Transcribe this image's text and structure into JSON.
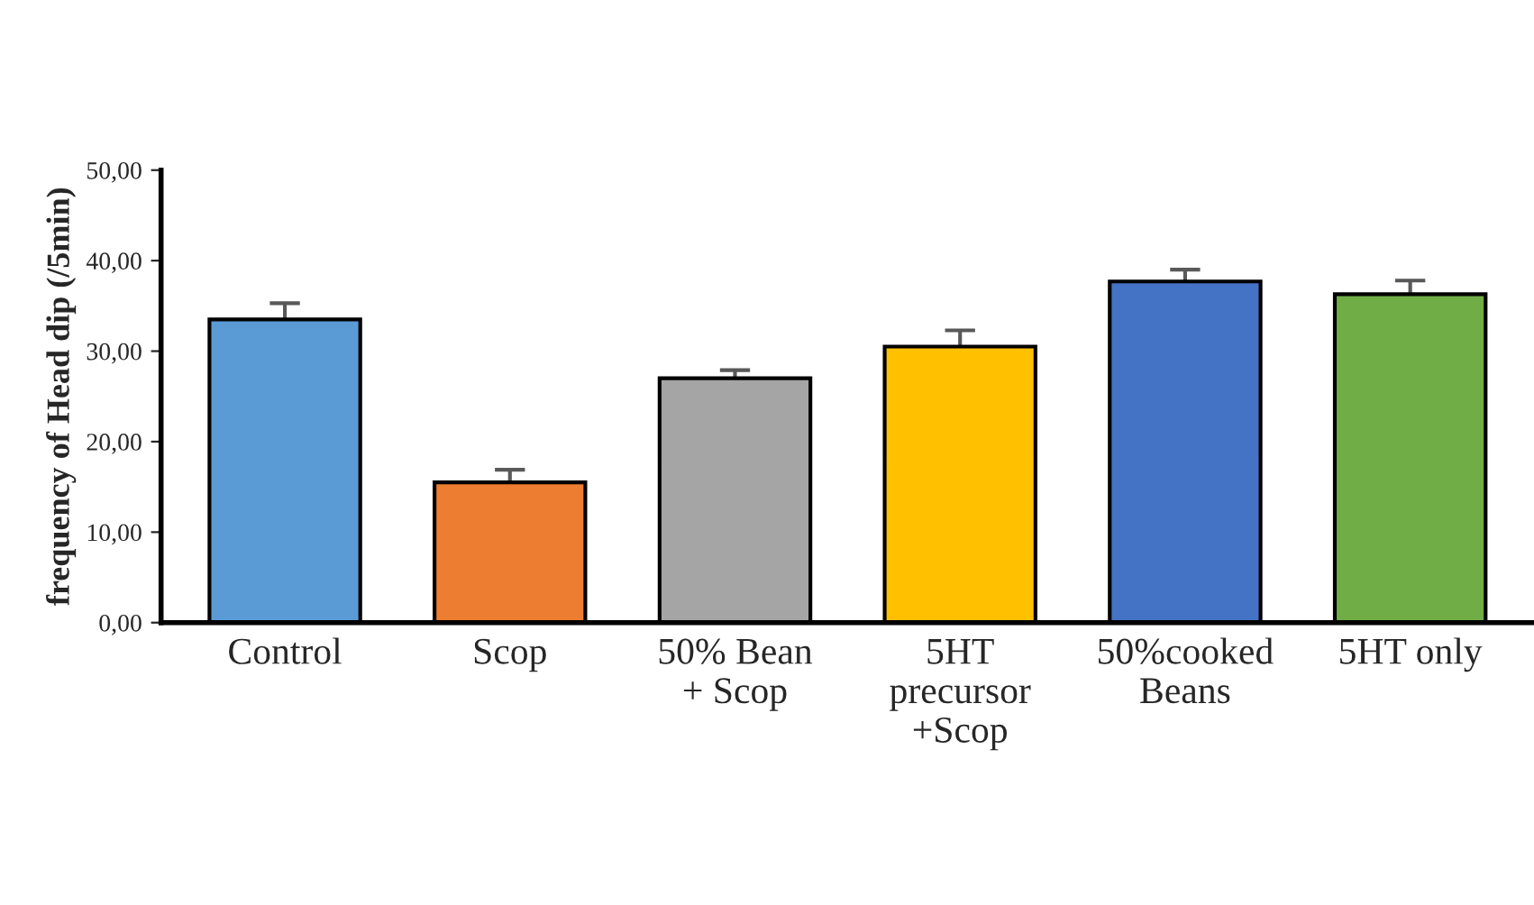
{
  "chart_data": {
    "type": "bar",
    "ylabel": "frequency of Head dip (/5min)",
    "categories": [
      "Control",
      "Scop",
      "50% Bean\n+ Scop",
      "5HT\nprecursor\n+Scop",
      "50%cooked\nBeans",
      "5HT only"
    ],
    "values": [
      33.5,
      15.5,
      27.0,
      30.5,
      37.7,
      36.3
    ],
    "errors": [
      1.8,
      1.4,
      0.9,
      1.8,
      1.3,
      1.5
    ],
    "colors": [
      "#5b9bd5",
      "#ed7d31",
      "#a5a5a5",
      "#ffc000",
      "#4472c4",
      "#70ad47"
    ],
    "ylim": [
      0,
      50
    ],
    "yticks": [
      {
        "value": 0,
        "label": "0,00"
      },
      {
        "value": 10,
        "label": "10,00"
      },
      {
        "value": 20,
        "label": "20,00"
      },
      {
        "value": 30,
        "label": "30,00"
      },
      {
        "value": 40,
        "label": "40,00"
      },
      {
        "value": 50,
        "label": "50,00"
      }
    ],
    "grid": false
  }
}
